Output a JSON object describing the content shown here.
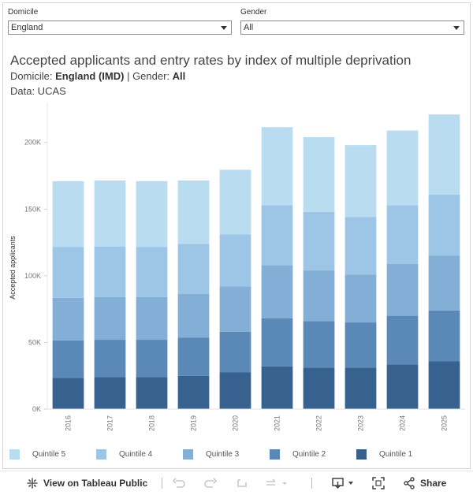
{
  "filters": {
    "domicile": {
      "label": "Domicile",
      "value": "England"
    },
    "gender": {
      "label": "Gender",
      "value": "All"
    }
  },
  "header": {
    "title": "Accepted applicants and entry rates by index of multiple deprivation",
    "subtitle_domicile_label": "Domicile: ",
    "subtitle_domicile_value": "England (IMD)",
    "subtitle_sep": " | Gender: ",
    "subtitle_gender_value": "All",
    "source": "Data: UCAS"
  },
  "colors": {
    "quintile_1": "#37628f",
    "quintile_2": "#5a89b8",
    "quintile_3": "#83aed5",
    "quintile_4": "#9cc5e6",
    "quintile_5": "#b9dcf1"
  },
  "chart_data": {
    "type": "bar",
    "stacked": true,
    "categories": [
      "2016",
      "2017",
      "2018",
      "2019",
      "2020",
      "2021",
      "2022",
      "2023",
      "2024",
      "2025"
    ],
    "series": [
      {
        "name": "Quintile 1",
        "values": [
          23500,
          24000,
          24000,
          25000,
          27500,
          32000,
          31000,
          31000,
          33500,
          36000
        ]
      },
      {
        "name": "Quintile 2",
        "values": [
          28000,
          28000,
          28000,
          28500,
          30500,
          36000,
          35000,
          34000,
          36500,
          38000
        ]
      },
      {
        "name": "Quintile 3",
        "values": [
          32000,
          32000,
          32000,
          33000,
          34000,
          40000,
          38000,
          36000,
          39000,
          41000
        ]
      },
      {
        "name": "Quintile 4",
        "values": [
          38000,
          38000,
          37500,
          37500,
          39000,
          45000,
          44000,
          43000,
          44000,
          46000
        ]
      },
      {
        "name": "Quintile 5",
        "values": [
          49500,
          49500,
          49500,
          47500,
          48500,
          58500,
          56000,
          54000,
          56000,
          60000
        ]
      }
    ],
    "ylabel": "Accepted applicants",
    "ylim": [
      0,
      230000
    ],
    "yticks": [
      0,
      50000,
      100000,
      150000,
      200000
    ],
    "ytick_labels": [
      "0K",
      "50K",
      "100K",
      "150K",
      "200K"
    ],
    "grid": false,
    "legend_position": "bottom"
  },
  "toolbar": {
    "view_label": "View on Tableau Public",
    "share_label": "Share"
  }
}
